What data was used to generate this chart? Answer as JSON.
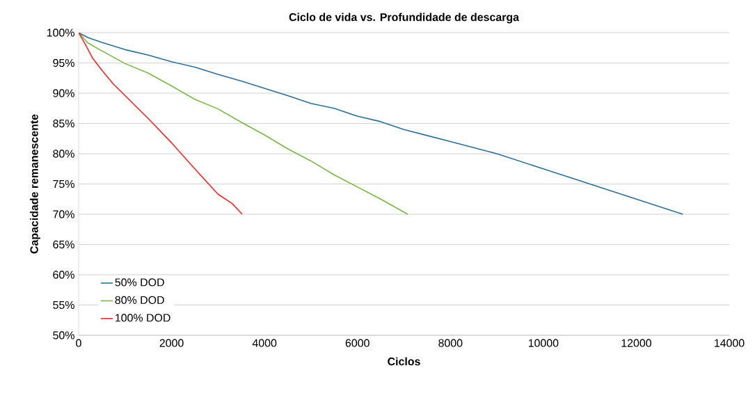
{
  "chart_data": {
    "type": "line",
    "title": "Ciclo de vida vs. Profundidade de descarga",
    "xlabel": "Ciclos",
    "ylabel": "Capacidade remanescente",
    "xlim": [
      0,
      14000
    ],
    "xticks": [
      0,
      2000,
      4000,
      6000,
      8000,
      10000,
      12000,
      14000
    ],
    "ylim": [
      50,
      100
    ],
    "yticks": [
      {
        "value": 50,
        "label": "50%"
      },
      {
        "value": 55,
        "label": "55%"
      },
      {
        "value": 60,
        "label": "60%"
      },
      {
        "value": 65,
        "label": "65%"
      },
      {
        "value": 70,
        "label": "70%"
      },
      {
        "value": 75,
        "label": "75%"
      },
      {
        "value": 80,
        "label": "80%"
      },
      {
        "value": 85,
        "label": "85%"
      },
      {
        "value": 90,
        "label": "90%"
      },
      {
        "value": 95,
        "label": "95%"
      },
      {
        "value": 100,
        "label": "100%"
      }
    ],
    "grid": "y",
    "legend": "bottom left",
    "marker": "none",
    "line_style": "solid",
    "series": [
      {
        "name": "50% DOD",
        "color": "#2a6f97",
        "x": [
          0,
          200,
          500,
          1000,
          1500,
          2000,
          2500,
          3000,
          3500,
          4000,
          4500,
          5000,
          5500,
          6000,
          6500,
          7000,
          7500,
          8000,
          9000,
          10000,
          11000,
          12000,
          13000
        ],
        "values": [
          100,
          99.2,
          98.4,
          97.2,
          96.3,
          95.2,
          94.3,
          93.1,
          92.0,
          90.8,
          89.6,
          88.3,
          87.5,
          86.2,
          85.3,
          84.0,
          83.0,
          82.0,
          80.0,
          77.5,
          75.0,
          72.5,
          70
        ]
      },
      {
        "name": "80% DOD",
        "color": "#77b843",
        "x": [
          0,
          200,
          500,
          1000,
          1500,
          2000,
          2500,
          3000,
          3500,
          4000,
          4500,
          5000,
          5500,
          6000,
          6500,
          7080
        ],
        "values": [
          100,
          98.3,
          97.0,
          94.9,
          93.3,
          91.2,
          89.0,
          87.4,
          85.2,
          83.1,
          80.8,
          78.8,
          76.5,
          74.5,
          72.5,
          70
        ]
      },
      {
        "name": "100% DOD",
        "color": "#ff2020",
        "x": [
          0,
          150,
          300,
          500,
          750,
          1000,
          1500,
          2000,
          2500,
          3000,
          3300,
          3520
        ],
        "values": [
          100,
          98.0,
          95.8,
          93.8,
          91.5,
          89.6,
          85.8,
          81.8,
          77.5,
          73.3,
          71.8,
          70
        ]
      }
    ]
  }
}
